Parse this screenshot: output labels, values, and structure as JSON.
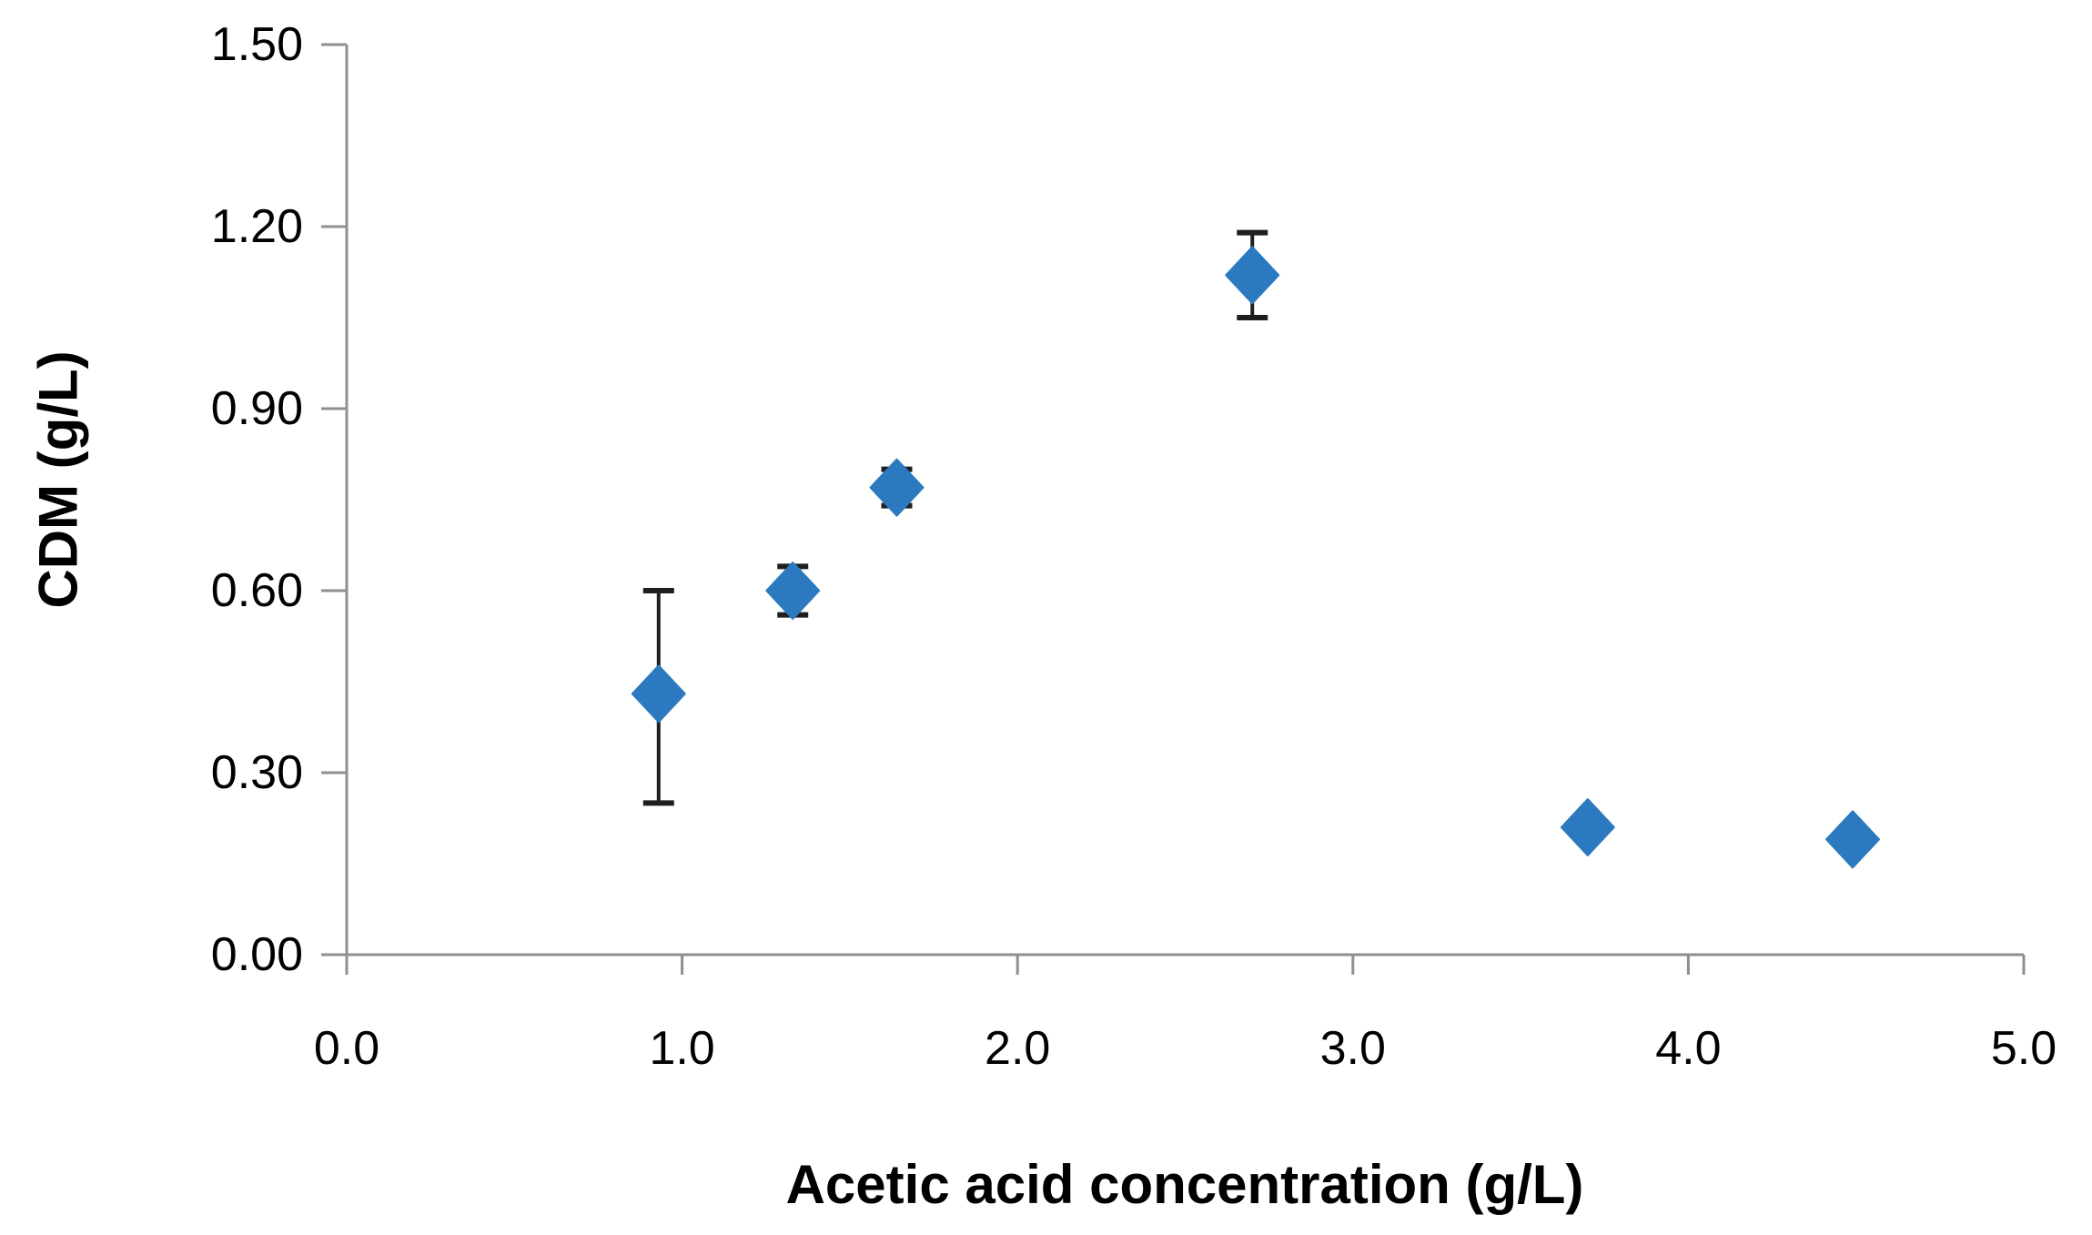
{
  "chart_data": {
    "type": "scatter",
    "title": "",
    "xlabel": "Acetic acid concentration (g/L)",
    "ylabel": "CDM (g/L)",
    "xlim": [
      0.0,
      5.0
    ],
    "ylim": [
      0.0,
      1.5
    ],
    "grid": false,
    "legend": false,
    "marker": "diamond",
    "marker_color": "#2B7ABF",
    "error_bar_color": "#1f1f1f",
    "axis_color": "#8F8F8F",
    "text_color": "#000000",
    "x_ticks": [
      {
        "value": 0.0,
        "label": "0.0"
      },
      {
        "value": 1.0,
        "label": "1.0"
      },
      {
        "value": 2.0,
        "label": "2.0"
      },
      {
        "value": 3.0,
        "label": "3.0"
      },
      {
        "value": 4.0,
        "label": "4.0"
      },
      {
        "value": 5.0,
        "label": "5.0"
      }
    ],
    "y_ticks": [
      {
        "value": 0.0,
        "label": "0.00"
      },
      {
        "value": 0.3,
        "label": "0.30"
      },
      {
        "value": 0.6,
        "label": "0.60"
      },
      {
        "value": 0.9,
        "label": "0.90"
      },
      {
        "value": 1.2,
        "label": "1.20"
      },
      {
        "value": 1.5,
        "label": "1.50"
      }
    ],
    "series": [
      {
        "name": "CDM",
        "points": [
          {
            "x": 0.93,
            "y": 0.43,
            "yerr_plus": 0.17,
            "yerr_minus": 0.18
          },
          {
            "x": 1.33,
            "y": 0.6,
            "yerr_plus": 0.04,
            "yerr_minus": 0.04
          },
          {
            "x": 1.64,
            "y": 0.77,
            "yerr_plus": 0.03,
            "yerr_minus": 0.03
          },
          {
            "x": 2.7,
            "y": 1.12,
            "yerr_plus": 0.07,
            "yerr_minus": 0.07
          },
          {
            "x": 3.7,
            "y": 0.21,
            "yerr_plus": 0.0,
            "yerr_minus": 0.0
          },
          {
            "x": 4.49,
            "y": 0.19,
            "yerr_plus": 0.0,
            "yerr_minus": 0.0
          }
        ]
      }
    ]
  }
}
